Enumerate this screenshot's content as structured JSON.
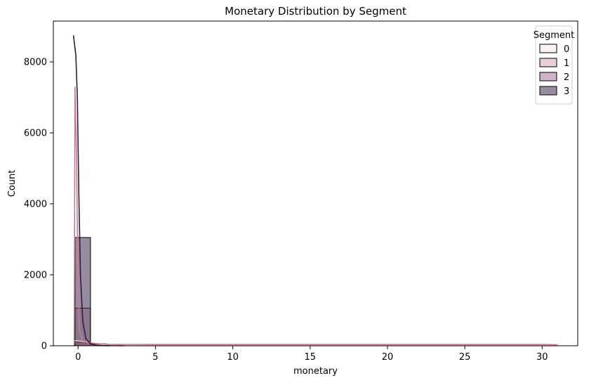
{
  "chart_data": {
    "type": "histogram",
    "title": "Monetary Distribution by Segment",
    "xlabel": "monetary",
    "ylabel": "Count",
    "xlim": [
      -1.6,
      32.3
    ],
    "ylim": [
      0,
      9150
    ],
    "x_ticks": [
      0,
      5,
      10,
      15,
      20,
      25,
      30
    ],
    "y_ticks": [
      0,
      2000,
      4000,
      6000,
      8000
    ],
    "grid": false,
    "legend": {
      "title": "Segment",
      "placement": "top-right"
    },
    "bin_edges": [
      -0.2,
      0.8,
      1.8,
      2.8,
      3.8,
      4.8,
      5.8,
      6.8,
      7.8,
      8.8,
      9.8,
      10.8,
      11.8,
      12.8,
      13.8,
      14.8,
      15.8,
      16.8,
      17.8,
      18.8,
      19.8,
      20.8,
      21.8,
      22.8,
      23.8,
      24.8,
      25.8,
      26.8,
      27.8,
      28.8,
      29.8,
      31.0
    ],
    "series": [
      {
        "name": "0",
        "color": "#f6e5e4",
        "line_color": "#e8c8c4",
        "counts": [
          100,
          30,
          5,
          0,
          0,
          0,
          0,
          0,
          0,
          0,
          0,
          0,
          0,
          0,
          0,
          0,
          0,
          0,
          0,
          0,
          0,
          0,
          0,
          0,
          0,
          0,
          0,
          0,
          0,
          0,
          0
        ],
        "kde": [
          [
            -0.2,
            140
          ],
          [
            0.1,
            130
          ],
          [
            0.5,
            110
          ],
          [
            1.0,
            80
          ],
          [
            1.5,
            40
          ],
          [
            2.0,
            15
          ],
          [
            3.0,
            5
          ],
          [
            5.0,
            2
          ],
          [
            31.0,
            0
          ]
        ]
      },
      {
        "name": "1",
        "color": "#d4a7b8",
        "line_color": "#c07e96",
        "counts": [
          1060,
          55,
          20,
          8,
          4,
          3,
          2,
          2,
          1,
          1,
          1,
          1,
          1,
          1,
          1,
          1,
          1,
          1,
          1,
          1,
          1,
          1,
          1,
          1,
          1,
          1,
          1,
          1,
          1,
          1,
          1
        ],
        "kde": [
          [
            -0.25,
            0
          ],
          [
            -0.2,
            7300
          ],
          [
            -0.1,
            5200
          ],
          [
            0.0,
            1500
          ],
          [
            0.1,
            400
          ],
          [
            0.3,
            150
          ],
          [
            0.6,
            90
          ],
          [
            1.0,
            70
          ],
          [
            2.0,
            40
          ],
          [
            5.0,
            35
          ],
          [
            10.0,
            35
          ],
          [
            20.0,
            35
          ],
          [
            30.0,
            35
          ],
          [
            31.0,
            30
          ]
        ]
      },
      {
        "name": "2",
        "color": "#a77795",
        "line_color": "#93617f",
        "counts": [
          110,
          0,
          0,
          0,
          0,
          0,
          0,
          0,
          0,
          0,
          0,
          0,
          0,
          0,
          0,
          0,
          0,
          0,
          0,
          0,
          0,
          0,
          0,
          0,
          0,
          0,
          0,
          0,
          0,
          0,
          0
        ],
        "kde": [
          [
            -0.2,
            90
          ],
          [
            0.2,
            60
          ],
          [
            0.8,
            20
          ],
          [
            1.5,
            5
          ],
          [
            3.0,
            0
          ]
        ]
      },
      {
        "name": "3",
        "color": "#3f2f50",
        "line_color": "#2d1e3e",
        "counts": [
          3050,
          0,
          0,
          0,
          0,
          0,
          0,
          0,
          0,
          0,
          0,
          0,
          0,
          0,
          0,
          0,
          0,
          0,
          0,
          0,
          0,
          0,
          0,
          0,
          0,
          0,
          0,
          0,
          0,
          0,
          0
        ],
        "kde": [
          [
            -0.3,
            8750
          ],
          [
            -0.15,
            8200
          ],
          [
            -0.05,
            7000
          ],
          [
            0.05,
            4200
          ],
          [
            0.15,
            2000
          ],
          [
            0.3,
            700
          ],
          [
            0.5,
            200
          ],
          [
            0.8,
            60
          ],
          [
            1.2,
            10
          ],
          [
            2.0,
            0
          ]
        ]
      }
    ]
  }
}
